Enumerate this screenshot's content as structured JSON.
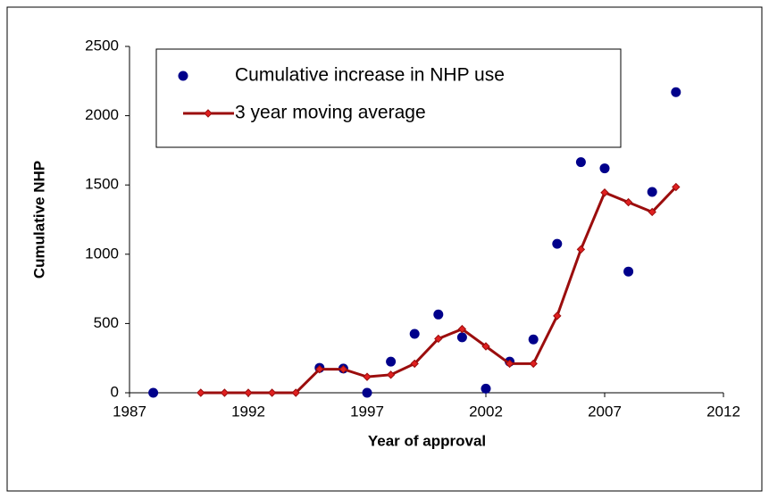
{
  "chart_data": {
    "type": "scatter",
    "xlabel": "Year of approval",
    "ylabel": "Cumulative NHP",
    "xlim": [
      1987,
      2012
    ],
    "xticks": [
      1987,
      1992,
      1997,
      2002,
      2007,
      2012
    ],
    "ylim": [
      0,
      2500
    ],
    "yticks": [
      0,
      500,
      1000,
      1500,
      2000,
      2500
    ],
    "legend": "upper left",
    "series": [
      {
        "name": "Cumulative increase in NHP use",
        "type": "scatter",
        "color": "#00008b",
        "x": [
          1988,
          1995,
          1996,
          1997,
          1998,
          1999,
          2000,
          2001,
          2002,
          2003,
          2004,
          2005,
          2006,
          2007,
          2008,
          2009,
          2010
        ],
        "values": [
          0,
          180,
          175,
          0,
          225,
          425,
          565,
          400,
          30,
          225,
          385,
          1075,
          1665,
          1620,
          875,
          1450,
          2170
        ]
      },
      {
        "name": "3 year moving average",
        "type": "line",
        "color": "#9b0d0d",
        "x": [
          1990,
          1991,
          1992,
          1993,
          1994,
          1995,
          1996,
          1997,
          1998,
          1999,
          2000,
          2001,
          2002,
          2003,
          2004,
          2005,
          2006,
          2007,
          2008,
          2009,
          2010
        ],
        "values": [
          0,
          0,
          0,
          0,
          0,
          170,
          170,
          115,
          130,
          210,
          390,
          460,
          335,
          210,
          210,
          555,
          1035,
          1445,
          1375,
          1305,
          1485
        ]
      }
    ]
  }
}
